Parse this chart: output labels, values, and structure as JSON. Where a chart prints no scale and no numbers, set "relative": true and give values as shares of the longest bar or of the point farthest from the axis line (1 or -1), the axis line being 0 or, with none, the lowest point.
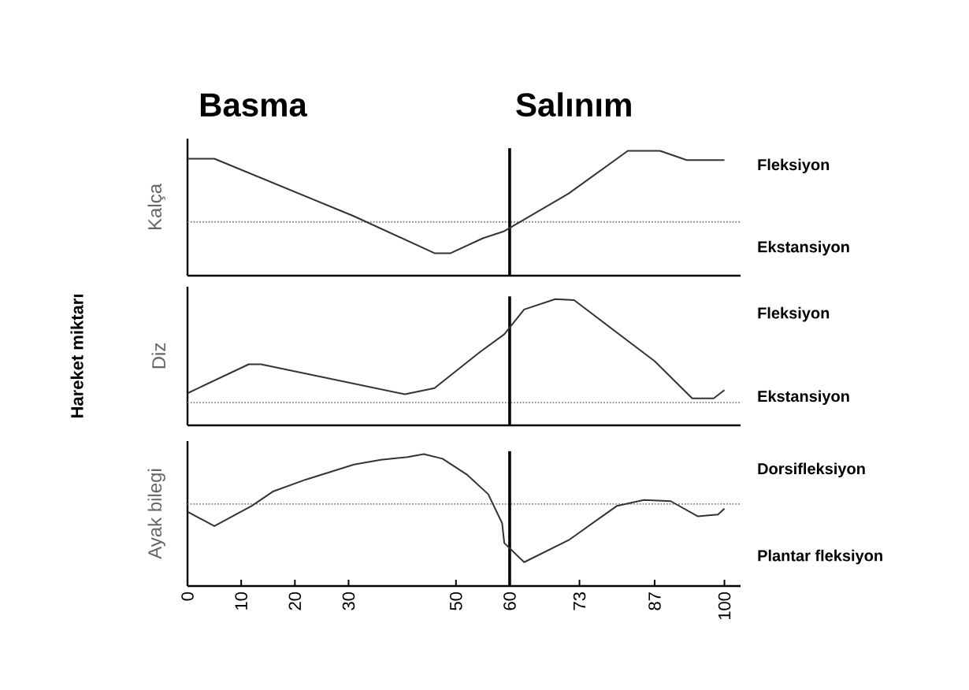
{
  "chart_data": [
    {
      "type": "line",
      "ylabel": "Kalça",
      "relative": true,
      "color": "#333333",
      "xlim": [
        0,
        103
      ],
      "tick_labels": false,
      "x": [
        0,
        5,
        31,
        46,
        49,
        55,
        59,
        71,
        82,
        88,
        93,
        100
      ],
      "values": [
        0.89,
        0.89,
        0.08,
        -0.44,
        -0.44,
        -0.23,
        -0.13,
        0.4,
        1,
        1,
        0.87,
        0.87
      ],
      "ref_lines": [
        {
          "axis": "y",
          "value": 0,
          "color": "#888888",
          "line_style": "dotted"
        },
        {
          "axis": "x",
          "value": 60,
          "color": "#000000"
        }
      ],
      "annotations": [
        "Basma",
        "Salınım",
        "Fleksiyon",
        "Ekstansiyon"
      ]
    },
    {
      "type": "line",
      "ylabel": "Diz",
      "relative": true,
      "color": "#333333",
      "xlim": [
        0,
        103
      ],
      "tick_labels": false,
      "x": [
        0,
        11.4,
        13.7,
        40.5,
        46,
        54.5,
        59,
        62.7,
        68.5,
        72,
        87,
        94,
        98,
        100
      ],
      "values": [
        0.09,
        0.37,
        0.37,
        0.08,
        0.14,
        0.49,
        0.66,
        0.9,
        1,
        0.99,
        0.4,
        0.04,
        0.04,
        0.12
      ],
      "ref_lines": [
        {
          "axis": "y",
          "value": 0,
          "color": "#888888",
          "line_style": "dotted"
        },
        {
          "axis": "x",
          "value": 60,
          "color": "#000000"
        }
      ],
      "annotations": [
        "Hareket miktarı",
        "Fleksiyon",
        "Ekstansiyon"
      ]
    },
    {
      "type": "line",
      "ylabel": "Ayak bilegi",
      "relative": true,
      "color": "#333333",
      "xlim": [
        0,
        103
      ],
      "tick_labels": "x",
      "xticks": [
        0,
        10,
        20,
        30,
        50,
        60,
        73,
        87,
        100
      ],
      "x": [
        0,
        5,
        12,
        16,
        22,
        31,
        36,
        41,
        44,
        47.5,
        52,
        56,
        58.6,
        59,
        62.7,
        71,
        80,
        85,
        90,
        95,
        98.8,
        100
      ],
      "values": [
        -0.13,
        -0.38,
        -0.03,
        0.22,
        0.42,
        0.68,
        0.76,
        0.81,
        0.86,
        0.78,
        0.51,
        0.17,
        -0.33,
        -0.67,
        -1,
        -0.62,
        -0.03,
        0.07,
        0.05,
        -0.21,
        -0.18,
        -0.08
      ],
      "ref_lines": [
        {
          "axis": "y",
          "value": 0,
          "color": "#888888",
          "line_style": "dotted"
        },
        {
          "axis": "x",
          "value": 60,
          "color": "#000000"
        }
      ],
      "annotations": [
        "Dorsifleksiyon",
        "Plantar fleksiyon"
      ]
    }
  ]
}
